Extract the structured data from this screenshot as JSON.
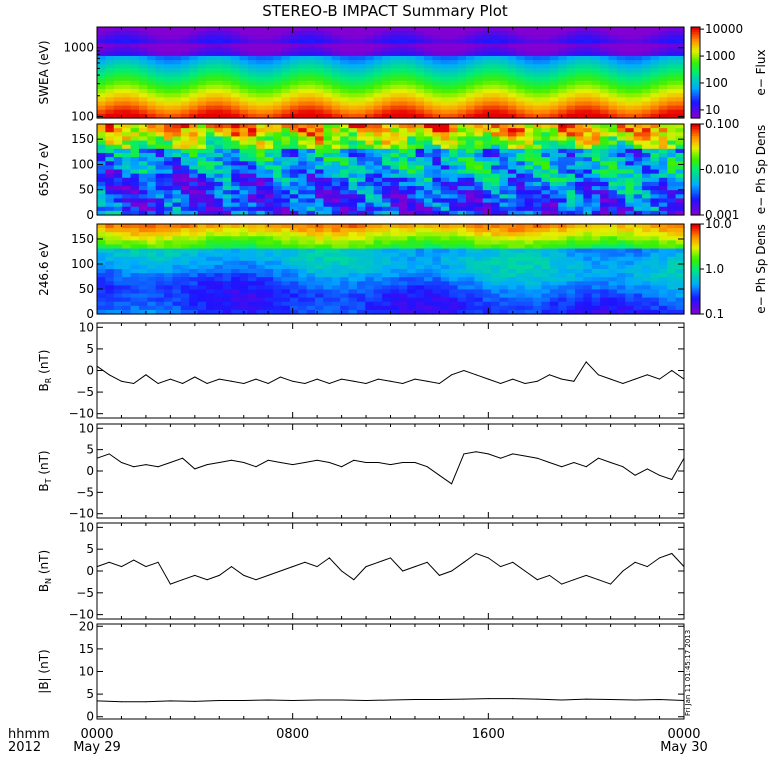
{
  "title": "STEREO-B IMPACT Summary Plot",
  "timestamp": "Fri Jan 11 01:45:17 2013",
  "time_axis": {
    "row1_label": "hhmm",
    "row2_label": "2012",
    "ticks": [
      {
        "x_hours": 0,
        "line1": "0000",
        "line2": "May 29"
      },
      {
        "x_hours": 8,
        "line1": "0800",
        "line2": ""
      },
      {
        "x_hours": 16,
        "line1": "1600",
        "line2": ""
      },
      {
        "x_hours": 24,
        "line1": "0000",
        "line2": "May 30"
      }
    ],
    "xlim": [
      0,
      24
    ]
  },
  "chart_data": [
    {
      "type": "heatmap",
      "id": "swea",
      "ylabel": "SWEA (eV)",
      "yscale": "log",
      "ylim": [
        95,
        2000
      ],
      "yticks": [
        {
          "v": 1000,
          "label": "1000"
        },
        {
          "v": 100,
          "label": "100"
        }
      ],
      "colorbar": {
        "label": "e− Flux",
        "scale": "log",
        "range": [
          5,
          12000
        ],
        "ticks": [
          {
            "v": 10000,
            "label": "10000"
          },
          {
            "v": 1000,
            "label": "1000"
          },
          {
            "v": 100,
            "label": "100"
          },
          {
            "v": 10,
            "label": "10"
          }
        ]
      }
    },
    {
      "type": "heatmap",
      "id": "pad650",
      "ylabel": "650.7 eV",
      "yscale": "linear",
      "ylim": [
        0,
        180
      ],
      "yticks": [
        {
          "v": 0,
          "label": "0"
        },
        {
          "v": 50,
          "label": "50"
        },
        {
          "v": 100,
          "label": "100"
        },
        {
          "v": 150,
          "label": "150"
        }
      ],
      "colorbar": {
        "label": "e− Ph Sp Dens",
        "scale": "log",
        "range": [
          0.001,
          0.1
        ],
        "ticks": [
          {
            "v": 0.1,
            "label": "0.100"
          },
          {
            "v": 0.01,
            "label": "0.010"
          },
          {
            "v": 0.001,
            "label": "0.001"
          }
        ]
      }
    },
    {
      "type": "heatmap",
      "id": "pad246",
      "ylabel": "246.6 eV",
      "yscale": "linear",
      "ylim": [
        0,
        180
      ],
      "yticks": [
        {
          "v": 0,
          "label": "0"
        },
        {
          "v": 50,
          "label": "50"
        },
        {
          "v": 100,
          "label": "100"
        },
        {
          "v": 150,
          "label": "150"
        }
      ],
      "colorbar": {
        "label": "e− Ph Sp Dens",
        "scale": "log",
        "range": [
          0.1,
          10
        ],
        "ticks": [
          {
            "v": 10,
            "label": "10.0"
          },
          {
            "v": 1,
            "label": "1.0"
          },
          {
            "v": 0.1,
            "label": "0.1"
          }
        ]
      }
    },
    {
      "type": "line",
      "id": "br",
      "ylabel_main": "B",
      "ylabel_sub": "R",
      "ylabel_unit": " (nT)",
      "ylim": [
        -11,
        11
      ],
      "yticks": [
        {
          "v": -10,
          "label": "−10"
        },
        {
          "v": -5,
          "label": "−5"
        },
        {
          "v": 0,
          "label": "0"
        },
        {
          "v": 5,
          "label": "5"
        },
        {
          "v": 10,
          "label": "10"
        }
      ],
      "x_hours": [
        0,
        0.5,
        1,
        1.5,
        2,
        2.5,
        3,
        3.5,
        4,
        4.5,
        5,
        5.5,
        6,
        6.5,
        7,
        7.5,
        8,
        8.5,
        9,
        9.5,
        10,
        10.5,
        11,
        11.5,
        12,
        12.5,
        13,
        13.5,
        14,
        14.5,
        15,
        15.5,
        16,
        16.5,
        17,
        17.5,
        18,
        18.5,
        19,
        19.5,
        20,
        20.5,
        21,
        21.5,
        22,
        22.5,
        23,
        23.5,
        24
      ],
      "values": [
        1,
        -1,
        -2.5,
        -3,
        -1,
        -3,
        -2,
        -3,
        -1.5,
        -3,
        -2,
        -2.5,
        -3,
        -2,
        -3,
        -1.5,
        -2.5,
        -3,
        -2,
        -3,
        -2,
        -2.5,
        -3,
        -2,
        -2.5,
        -3,
        -2,
        -2.5,
        -3,
        -1,
        0,
        -1,
        -2,
        -3,
        -2,
        -3,
        -2.5,
        -1,
        -2,
        -2.5,
        2,
        -1,
        -2,
        -3,
        -2,
        -1,
        -2,
        0,
        -2
      ]
    },
    {
      "type": "line",
      "id": "bt",
      "ylabel_main": "B",
      "ylabel_sub": "T",
      "ylabel_unit": " (nT)",
      "ylim": [
        -11,
        11
      ],
      "yticks": [
        {
          "v": -10,
          "label": "−10"
        },
        {
          "v": -5,
          "label": "−5"
        },
        {
          "v": 0,
          "label": "0"
        },
        {
          "v": 5,
          "label": "5"
        },
        {
          "v": 10,
          "label": "10"
        }
      ],
      "x_hours": [
        0,
        0.5,
        1,
        1.5,
        2,
        2.5,
        3,
        3.5,
        4,
        4.5,
        5,
        5.5,
        6,
        6.5,
        7,
        7.5,
        8,
        8.5,
        9,
        9.5,
        10,
        10.5,
        11,
        11.5,
        12,
        12.5,
        13,
        13.5,
        14,
        14.5,
        15,
        15.5,
        16,
        16.5,
        17,
        17.5,
        18,
        18.5,
        19,
        19.5,
        20,
        20.5,
        21,
        21.5,
        22,
        22.5,
        23,
        23.5,
        24
      ],
      "values": [
        3,
        4,
        2,
        1,
        1.5,
        1,
        2,
        3,
        0.5,
        1.5,
        2,
        2.5,
        2,
        1,
        2.5,
        2,
        1.5,
        2,
        2.5,
        2,
        1,
        2.5,
        2,
        2,
        1.5,
        2,
        2,
        1,
        -1,
        -3,
        4,
        4.5,
        4,
        3,
        4,
        3.5,
        3,
        2,
        1,
        2,
        1,
        3,
        2,
        1,
        -1,
        0.5,
        -1,
        -2,
        3
      ]
    },
    {
      "type": "line",
      "id": "bn",
      "ylabel_main": "B",
      "ylabel_sub": "N",
      "ylabel_unit": " (nT)",
      "ylim": [
        -11,
        11
      ],
      "yticks": [
        {
          "v": -10,
          "label": "−10"
        },
        {
          "v": -5,
          "label": "−5"
        },
        {
          "v": 0,
          "label": "0"
        },
        {
          "v": 5,
          "label": "5"
        },
        {
          "v": 10,
          "label": "10"
        }
      ],
      "x_hours": [
        0,
        0.5,
        1,
        1.5,
        2,
        2.5,
        3,
        3.5,
        4,
        4.5,
        5,
        5.5,
        6,
        6.5,
        7,
        7.5,
        8,
        8.5,
        9,
        9.5,
        10,
        10.5,
        11,
        11.5,
        12,
        12.5,
        13,
        13.5,
        14,
        14.5,
        15,
        15.5,
        16,
        16.5,
        17,
        17.5,
        18,
        18.5,
        19,
        19.5,
        20,
        20.5,
        21,
        21.5,
        22,
        22.5,
        23,
        23.5,
        24
      ],
      "values": [
        1,
        2,
        1,
        2.5,
        1,
        2,
        -3,
        -2,
        -1,
        -2,
        -1,
        1,
        -1,
        -2,
        -1,
        0,
        1,
        2,
        1,
        3,
        0,
        -2,
        1,
        2,
        3,
        0,
        1,
        2,
        -1,
        0,
        2,
        4,
        3,
        1,
        2,
        0,
        -2,
        -1,
        -3,
        -2,
        -1,
        -2,
        -3,
        0,
        2,
        1,
        3,
        4,
        1
      ]
    },
    {
      "type": "line",
      "id": "bmag",
      "ylabel": "|B| (nT)",
      "ylim": [
        -0.5,
        20.5
      ],
      "yticks": [
        {
          "v": 0,
          "label": "0"
        },
        {
          "v": 5,
          "label": "5"
        },
        {
          "v": 10,
          "label": "10"
        },
        {
          "v": 15,
          "label": "15"
        },
        {
          "v": 20,
          "label": "20"
        }
      ],
      "x_hours": [
        0,
        1,
        2,
        3,
        4,
        5,
        6,
        7,
        8,
        9,
        10,
        11,
        12,
        13,
        14,
        15,
        16,
        17,
        18,
        19,
        20,
        21,
        22,
        23,
        24
      ],
      "values": [
        3.5,
        3.3,
        3.3,
        3.5,
        3.4,
        3.6,
        3.6,
        3.7,
        3.6,
        3.7,
        3.7,
        3.6,
        3.7,
        3.8,
        3.8,
        3.9,
        4.0,
        4.0,
        3.9,
        3.7,
        3.9,
        3.8,
        3.7,
        3.8,
        3.6
      ]
    }
  ]
}
